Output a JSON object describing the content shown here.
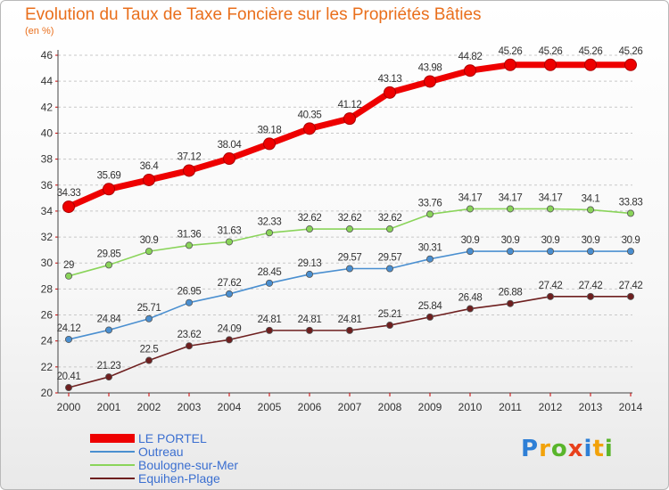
{
  "chart_data": {
    "type": "line",
    "title": "Evolution du Taux de Taxe Foncière sur les Propriétés Bâties",
    "subtitle": "(en %)",
    "x": [
      "2000",
      "2001",
      "2002",
      "2003",
      "2004",
      "2005",
      "2006",
      "2007",
      "2008",
      "2009",
      "2010",
      "2011",
      "2012",
      "2013",
      "2014"
    ],
    "ylim": [
      20,
      46
    ],
    "yticks": [
      20,
      22,
      24,
      26,
      28,
      30,
      32,
      34,
      36,
      38,
      40,
      42,
      44,
      46
    ],
    "grid": "horizontal-dashed",
    "legend_position": "bottom-left",
    "series": [
      {
        "name": "LE PORTEL",
        "color": "#ee0000",
        "emphasis": "thick",
        "values": [
          34.33,
          35.69,
          36.4,
          37.12,
          38.04,
          39.18,
          40.35,
          41.12,
          43.13,
          43.98,
          44.82,
          45.26,
          45.26,
          45.26,
          45.26
        ],
        "labels": [
          "34.33",
          "35.69",
          "36.4",
          "37.12",
          "38.04",
          "39.18",
          "40.35",
          "41.12",
          "43.13",
          "43.98",
          "44.82",
          "45.26",
          "45.26",
          "45.26",
          "45.26"
        ]
      },
      {
        "name": "Outreau",
        "color": "#4a8fd0",
        "values": [
          24.12,
          24.84,
          25.71,
          26.95,
          27.62,
          28.45,
          29.13,
          29.57,
          29.57,
          30.31,
          30.9,
          30.9,
          30.9,
          30.9,
          30.9
        ],
        "labels": [
          "24.12",
          "24.84",
          "25.71",
          "26.95",
          "27.62",
          "28.45",
          "29.13",
          "29.57",
          "29.57",
          "30.31",
          "30.9",
          "30.9",
          "30.9",
          "30.9",
          "30.9"
        ]
      },
      {
        "name": "Boulogne-sur-Mer",
        "color": "#8ad45a",
        "values": [
          29,
          29.85,
          30.9,
          31.36,
          31.63,
          32.33,
          32.62,
          32.62,
          32.62,
          33.76,
          34.17,
          34.17,
          34.17,
          34.1,
          33.83
        ],
        "labels": [
          "29",
          "29.85",
          "30.9",
          "31.36",
          "31.63",
          "32.33",
          "32.62",
          "32.62",
          "32.62",
          "33.76",
          "34.17",
          "34.17",
          "34.17",
          "34.1",
          "33.83"
        ]
      },
      {
        "name": "Equihen-Plage",
        "color": "#6e1f1f",
        "values": [
          20.41,
          21.23,
          22.5,
          23.62,
          24.09,
          24.81,
          24.81,
          24.81,
          25.21,
          25.84,
          26.48,
          26.88,
          27.42,
          27.42,
          27.42
        ],
        "labels": [
          "20.41",
          "21.23",
          "22.5",
          "23.62",
          "24.09",
          "24.81",
          "24.81",
          "24.81",
          "25.21",
          "25.84",
          "26.48",
          "26.88",
          "27.42",
          "27.42",
          "27.42"
        ]
      }
    ]
  },
  "brand": {
    "letters": [
      "P",
      "r",
      "o",
      "x",
      "i",
      "t",
      "i"
    ],
    "colors": [
      "#2e7fd6",
      "#f2a20a",
      "#59b52b",
      "#e8411c",
      "#2e7fd6",
      "#f2a20a",
      "#59b52b"
    ]
  }
}
